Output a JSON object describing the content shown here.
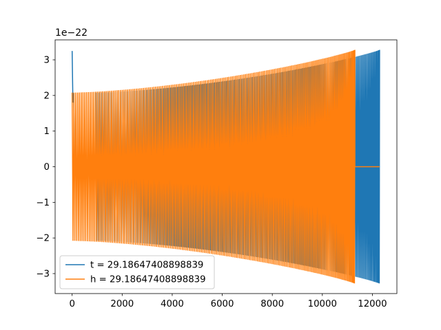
{
  "chart_data": {
    "type": "line",
    "title": "",
    "xlabel": "",
    "ylabel": "",
    "y_offset_label": "1e−22",
    "xlim": [
      -680,
      12980
    ],
    "ylim": [
      -3.56,
      3.56
    ],
    "x_ticks": [
      0,
      2000,
      4000,
      6000,
      8000,
      10000,
      12000
    ],
    "x_tick_labels": [
      "0",
      "2000",
      "4000",
      "6000",
      "8000",
      "10000",
      "12000"
    ],
    "y_ticks": [
      -3,
      -2,
      -1,
      0,
      1,
      2,
      3
    ],
    "y_tick_labels": [
      "−3",
      "−2",
      "−1",
      "0",
      "1",
      "2",
      "3"
    ],
    "grid": false,
    "legend_position": "lower-left",
    "series": [
      {
        "name": "t = 29.18647408898839",
        "color": "#1f77b4",
        "initial_spike": {
          "x": [
            0,
            30,
            60
          ],
          "y": [
            3.25,
            1.8,
            2.05
          ]
        },
        "silent_range": [
          100,
          950
        ],
        "signal_start": 950,
        "signal_end": 12290,
        "start_amplitude": 2.08,
        "end_amplitude": 3.28,
        "cycles": 180
      },
      {
        "name": "h = 29.18647408898839",
        "color": "#ff7f0e",
        "signal_start": 0,
        "signal_end": 11300,
        "start_amplitude": 2.08,
        "end_amplitude": 3.28,
        "cycles": 175,
        "silent_range": [
          11300,
          12290
        ]
      }
    ]
  }
}
